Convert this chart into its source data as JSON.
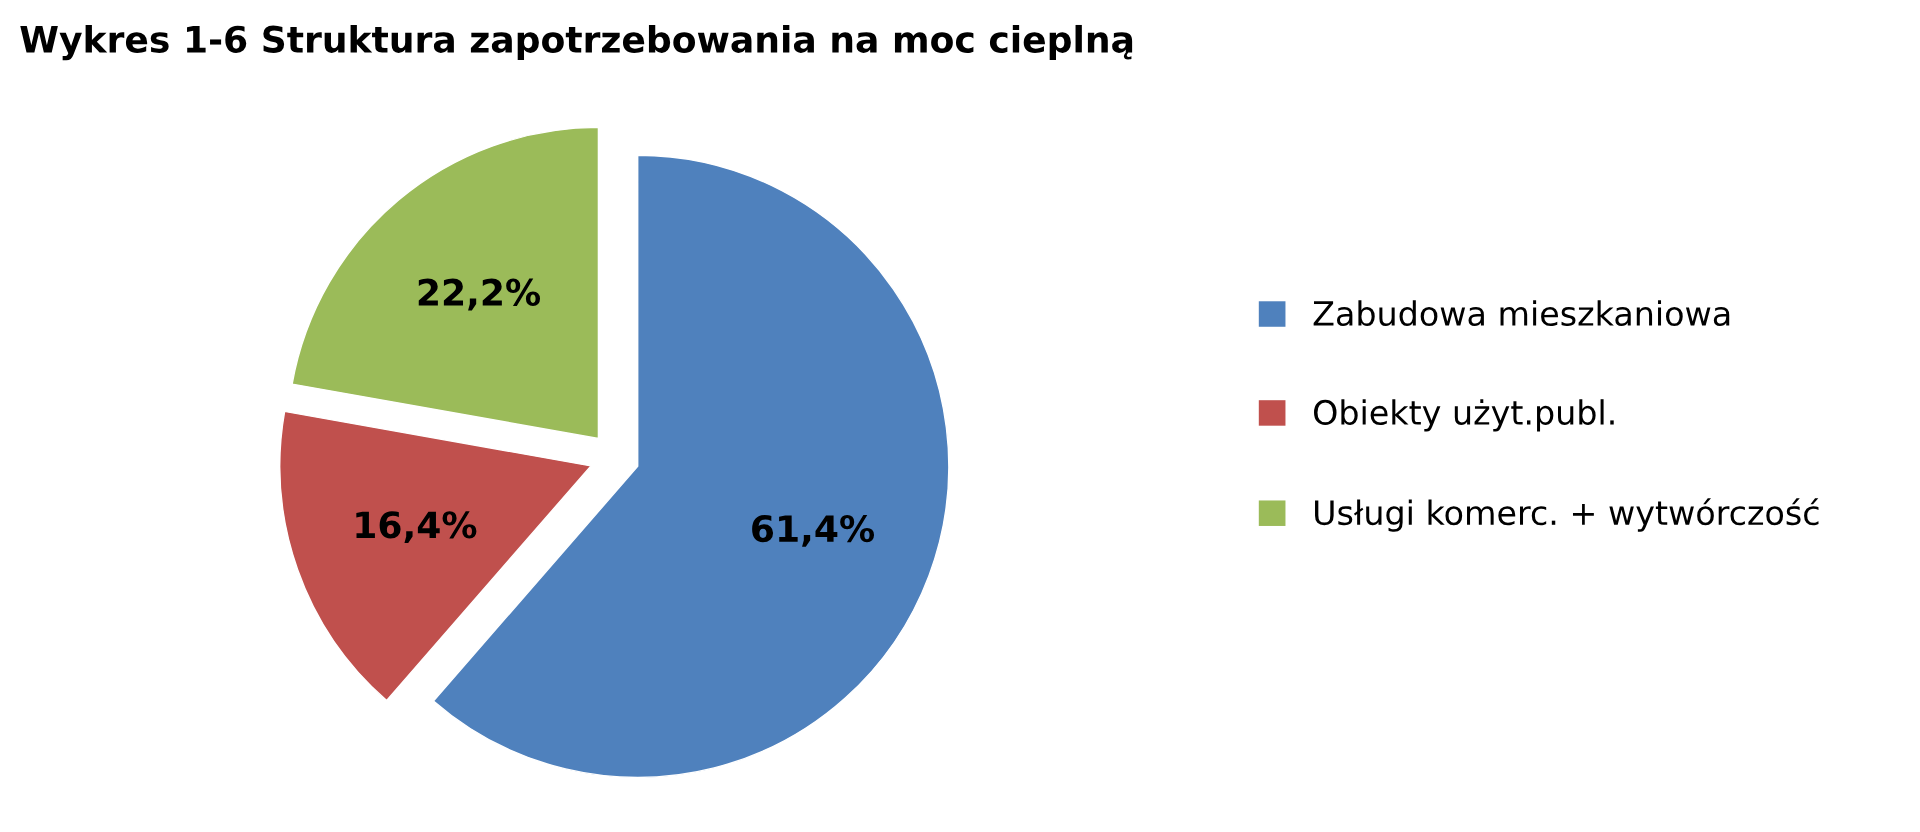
{
  "chart_data": {
    "type": "pie",
    "title": "Wykres 1-6 Struktura zapotrzebowania na moc cieplną",
    "categories": [
      "Zabudowa mieszkaniowa",
      "Obiekty użyt.publ.",
      "Usługi komerc. + wytwórczość"
    ],
    "values": [
      61.4,
      16.4,
      22.2
    ],
    "colors": [
      "#4f81bd",
      "#c0504d",
      "#9bbb59"
    ],
    "value_labels": [
      "61,4%",
      "16,4%",
      "22,2%"
    ],
    "legend": "right"
  }
}
